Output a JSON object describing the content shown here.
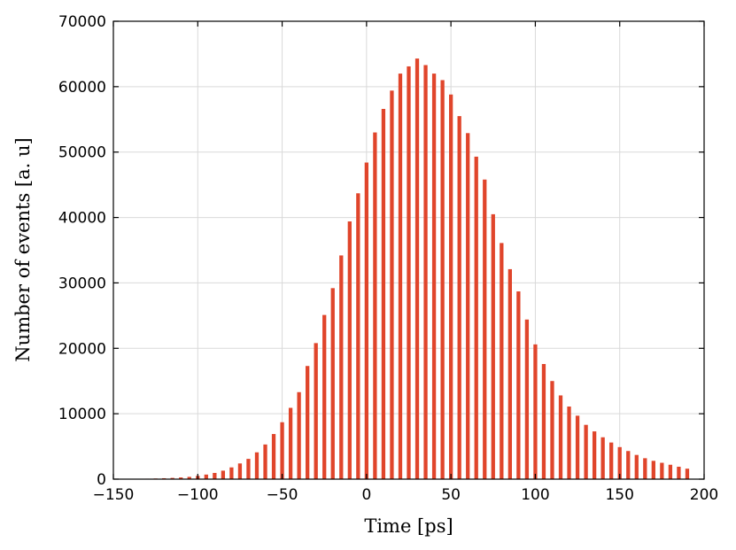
{
  "chart_data": {
    "type": "bar",
    "title": "",
    "xlabel": "Time [ps]",
    "ylabel": "Number of events [a. u]",
    "xlim": [
      -150,
      200
    ],
    "ylim": [
      0,
      70000
    ],
    "xticks": [
      -150,
      -100,
      -50,
      0,
      50,
      100,
      150,
      200
    ],
    "xtick_labels": [
      "−150",
      "−100",
      "−50",
      "0",
      "50",
      "100",
      "150",
      "200"
    ],
    "yticks": [
      0,
      10000,
      20000,
      30000,
      40000,
      50000,
      60000,
      70000
    ],
    "ytick_labels": [
      "0",
      "10000",
      "20000",
      "30000",
      "40000",
      "50000",
      "60000",
      "70000"
    ],
    "grid": true,
    "bar_color": "#e0452b",
    "bin_width": 5,
    "series": [
      {
        "x": [
          -135,
          -130,
          -125,
          -120,
          -115,
          -110,
          -105,
          -100,
          -95,
          -90,
          -85,
          -80,
          -75,
          -70,
          -65,
          -60,
          -55,
          -50,
          -45,
          -40,
          -35,
          -30,
          -25,
          -20,
          -15,
          -10,
          -5,
          0,
          5,
          10,
          15,
          20,
          25,
          30,
          35,
          40,
          45,
          50,
          55,
          60,
          65,
          70,
          75,
          80,
          85,
          90,
          95,
          100,
          105,
          110,
          115,
          120,
          125,
          130,
          135,
          140,
          145,
          150,
          155,
          160,
          165,
          170,
          175,
          180,
          185,
          190
        ],
        "values": [
          50,
          70,
          100,
          140,
          190,
          260,
          350,
          500,
          700,
          950,
          1300,
          1800,
          2400,
          3100,
          4100,
          5300,
          6900,
          8700,
          10900,
          13300,
          17300,
          20800,
          25100,
          29200,
          34200,
          39400,
          43700,
          48400,
          53000,
          56600,
          59400,
          62000,
          63100,
          64300,
          63300,
          62000,
          61000,
          58800,
          55500,
          52900,
          49300,
          45800,
          40500,
          36100,
          32100,
          28700,
          24400,
          20600,
          17600,
          15000,
          12800,
          11100,
          9700,
          8300,
          7300,
          6400,
          5600,
          4900,
          4300,
          3700,
          3200,
          2800,
          2500,
          2200,
          1900,
          1600
        ]
      }
    ]
  }
}
